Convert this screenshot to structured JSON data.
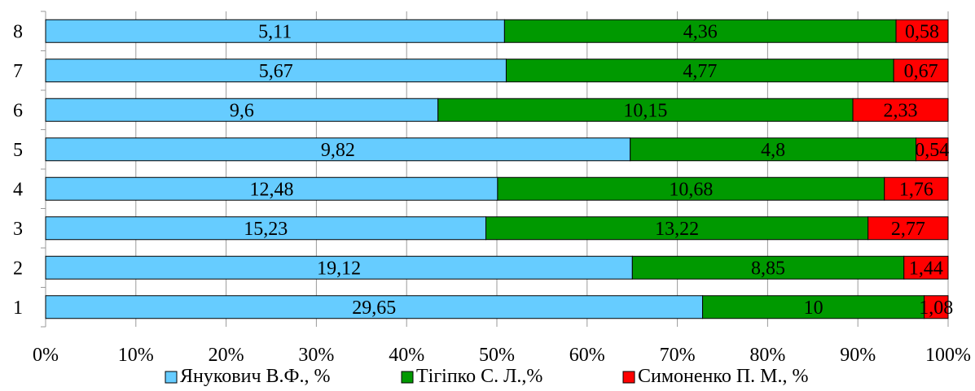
{
  "chart_data": {
    "type": "bar",
    "orientation": "horizontal",
    "stacking": "percent",
    "categories": [
      "1",
      "2",
      "3",
      "4",
      "5",
      "6",
      "7",
      "8"
    ],
    "series": [
      {
        "name": "Янукович В.Ф., %",
        "color": "#66CCFF",
        "values": [
          29.65,
          19.12,
          15.23,
          12.48,
          9.82,
          9.6,
          5.67,
          5.11
        ],
        "labels": [
          "29,65",
          "19,12",
          "15,23",
          "12,48",
          "9,82",
          "9,6",
          "5,67",
          "5,11"
        ]
      },
      {
        "name": "Тігіпко С. Л.,%",
        "color": "#009900",
        "values": [
          10,
          8.85,
          13.22,
          10.68,
          4.8,
          10.15,
          4.77,
          4.36
        ],
        "labels": [
          "10",
          "8,85",
          "13,22",
          "10,68",
          "4,8",
          "10,15",
          "4,77",
          "4,36"
        ]
      },
      {
        "name": "Симоненко П. М., %",
        "color": "#FF0000",
        "values": [
          1.08,
          1.44,
          2.77,
          1.76,
          0.54,
          2.33,
          0.67,
          0.58
        ],
        "labels": [
          "1,08",
          "1,44",
          "2,77",
          "1,76",
          "0,54",
          "2,33",
          "0,67",
          "0,58"
        ]
      }
    ],
    "x_ticks": [
      "0%",
      "10%",
      "20%",
      "30%",
      "40%",
      "50%",
      "60%",
      "70%",
      "80%",
      "90%",
      "100%"
    ],
    "xlim": [
      0,
      100
    ],
    "grid": true,
    "legend_position": "bottom",
    "title": "",
    "xlabel": "",
    "ylabel": ""
  }
}
